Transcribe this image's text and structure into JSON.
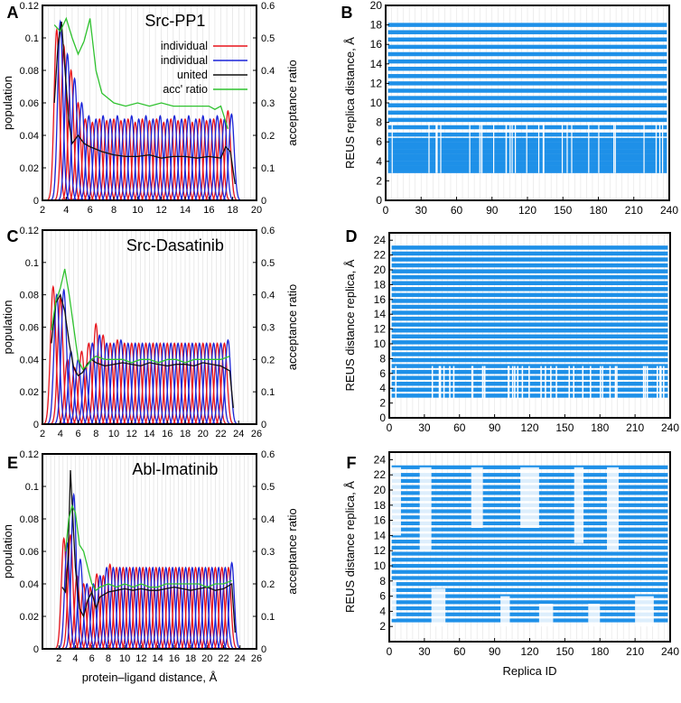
{
  "chart_data": [
    {
      "type": "line",
      "panel_label": "A",
      "title": "Src-PP1",
      "xlabel": "",
      "ylabel": "population",
      "y2label": "acceptance ratio",
      "xlim": [
        2,
        20
      ],
      "ylim": [
        0,
        0.12
      ],
      "y2lim": [
        0,
        0.6
      ],
      "xticks": [
        "2",
        "4",
        "6",
        "8",
        "10",
        "12",
        "14",
        "16",
        "18",
        "20"
      ],
      "yticks": [
        "0",
        "0.02",
        "0.04",
        "0.06",
        "0.08",
        "0.1",
        "0.12"
      ],
      "y2ticks": [
        "0",
        "0.1",
        "0.2",
        "0.3",
        "0.4",
        "0.5",
        "0.6"
      ],
      "grid": "x",
      "legend": "top-right",
      "series": [
        {
          "name": "individual",
          "color": "#e8141b",
          "kind": "gaussians",
          "centers": [
            3.2,
            3.8,
            4.4,
            5.0,
            5.6,
            6.2,
            6.8,
            7.4,
            8.0,
            8.6,
            9.2,
            9.8,
            10.4,
            11.0,
            11.6,
            12.2,
            12.8,
            13.4,
            14.0,
            14.6,
            15.2,
            15.8,
            16.4,
            17.0,
            17.6
          ],
          "sigma": 0.22,
          "peaks": [
            0.105,
            0.095,
            0.08,
            0.06,
            0.05,
            0.048,
            0.05,
            0.049,
            0.05,
            0.049,
            0.05,
            0.048,
            0.05,
            0.049,
            0.05,
            0.048,
            0.05,
            0.049,
            0.05,
            0.048,
            0.05,
            0.049,
            0.05,
            0.05,
            0.055
          ]
        },
        {
          "name": "individual",
          "color": "#1b24d8",
          "kind": "gaussians",
          "centers": [
            3.5,
            4.1,
            4.7,
            5.3,
            5.9,
            6.5,
            7.1,
            7.7,
            8.3,
            8.9,
            9.5,
            10.1,
            10.7,
            11.3,
            11.9,
            12.5,
            13.1,
            13.7,
            14.3,
            14.9,
            15.5,
            16.1,
            16.7,
            17.3,
            17.9
          ],
          "sigma": 0.22,
          "peaks": [
            0.11,
            0.09,
            0.075,
            0.06,
            0.052,
            0.05,
            0.052,
            0.05,
            0.052,
            0.05,
            0.052,
            0.05,
            0.052,
            0.05,
            0.052,
            0.05,
            0.052,
            0.05,
            0.052,
            0.05,
            0.052,
            0.05,
            0.052,
            0.05,
            0.053
          ]
        },
        {
          "name": "united",
          "color": "#111111",
          "kind": "line",
          "x": [
            3.0,
            3.3,
            3.6,
            3.9,
            4.2,
            4.5,
            5.0,
            5.5,
            6.0,
            7.0,
            8.0,
            9.0,
            10.0,
            11.0,
            12.0,
            13.0,
            14.0,
            15.0,
            16.0,
            17.0,
            17.4,
            17.8,
            18.2
          ],
          "values": [
            0.06,
            0.095,
            0.11,
            0.08,
            0.05,
            0.035,
            0.04,
            0.035,
            0.033,
            0.03,
            0.028,
            0.027,
            0.027,
            0.028,
            0.026,
            0.027,
            0.027,
            0.026,
            0.027,
            0.026,
            0.033,
            0.03,
            0.01
          ]
        },
        {
          "name": "acc' ratio",
          "color": "#2fc22f",
          "kind": "line",
          "axis": "y2",
          "x": [
            3.0,
            3.5,
            4.0,
            4.5,
            5.0,
            5.5,
            6.0,
            6.5,
            7.0,
            8.0,
            9.0,
            10.0,
            11.0,
            12.0,
            13.0,
            14.0,
            15.0,
            16.0,
            16.5,
            17.0,
            17.6
          ],
          "values": [
            0.54,
            0.52,
            0.56,
            0.5,
            0.45,
            0.49,
            0.56,
            0.4,
            0.33,
            0.3,
            0.29,
            0.3,
            0.29,
            0.3,
            0.29,
            0.29,
            0.29,
            0.29,
            0.28,
            0.29,
            0.22
          ]
        }
      ]
    },
    {
      "type": "scatter",
      "panel_label": "B",
      "xlabel": "",
      "ylabel": "REUS replica distance, Å",
      "xlim": [
        0,
        240
      ],
      "ylim": [
        0,
        20
      ],
      "xticks": [
        "0",
        "30",
        "60",
        "90",
        "120",
        "150",
        "180",
        "210",
        "240"
      ],
      "yticks": [
        "0",
        "2",
        "4",
        "6",
        "8",
        "10",
        "12",
        "14",
        "16",
        "18",
        "20"
      ],
      "color": "#1e90e8",
      "description": "horizontal rows of replica distance points",
      "rows": [
        3.0,
        3.4,
        3.8,
        4.2,
        4.6,
        5.0,
        5.4,
        5.8,
        6.2,
        6.75,
        7.5,
        8.25,
        9.0,
        9.75,
        10.5,
        11.25,
        12.0,
        12.75,
        13.5,
        14.25,
        15.0,
        15.75,
        16.5,
        17.25,
        18.0
      ]
    },
    {
      "type": "line",
      "panel_label": "C",
      "title": "Src-Dasatinib",
      "xlabel": "",
      "ylabel": "population",
      "y2label": "acceptance ratio",
      "xlim": [
        2,
        26
      ],
      "ylim": [
        0,
        0.12
      ],
      "y2lim": [
        0,
        0.6
      ],
      "xticks": [
        "2",
        "4",
        "6",
        "8",
        "10",
        "12",
        "14",
        "16",
        "18",
        "20",
        "22",
        "24",
        "26"
      ],
      "yticks": [
        "0",
        "0.02",
        "0.04",
        "0.06",
        "0.08",
        "0.1",
        "0.12"
      ],
      "y2ticks": [
        "0",
        "0.1",
        "0.2",
        "0.3",
        "0.4",
        "0.5",
        "0.6"
      ],
      "grid": "x",
      "series": [
        {
          "name": "individual",
          "color": "#e8141b",
          "kind": "gaussians",
          "centers": [
            3.2,
            4.0,
            4.8,
            5.6,
            6.4,
            7.2,
            8.0,
            8.8,
            9.6,
            10.4,
            11.2,
            12.0,
            12.8,
            13.6,
            14.4,
            15.2,
            16.0,
            16.8,
            17.6,
            18.4,
            19.2,
            20.0,
            20.8,
            21.6,
            22.4
          ],
          "sigma": 0.3,
          "peaks": [
            0.085,
            0.078,
            0.04,
            0.035,
            0.045,
            0.05,
            0.062,
            0.055,
            0.05,
            0.052,
            0.05,
            0.05,
            0.05,
            0.05,
            0.05,
            0.05,
            0.05,
            0.05,
            0.05,
            0.05,
            0.05,
            0.05,
            0.05,
            0.05,
            0.05
          ]
        },
        {
          "name": "individual",
          "color": "#1b24d8",
          "kind": "gaussians",
          "centers": [
            3.6,
            4.4,
            5.2,
            6.0,
            6.8,
            7.6,
            8.4,
            9.2,
            10.0,
            10.8,
            11.6,
            12.4,
            13.2,
            14.0,
            14.8,
            15.6,
            16.4,
            17.2,
            18.0,
            18.8,
            19.6,
            20.4,
            21.2,
            22.0,
            22.8
          ],
          "sigma": 0.3,
          "peaks": [
            0.08,
            0.083,
            0.045,
            0.04,
            0.035,
            0.05,
            0.055,
            0.05,
            0.05,
            0.052,
            0.05,
            0.05,
            0.05,
            0.05,
            0.05,
            0.05,
            0.05,
            0.05,
            0.05,
            0.05,
            0.05,
            0.05,
            0.05,
            0.05,
            0.052
          ]
        },
        {
          "name": "united",
          "color": "#111111",
          "kind": "line",
          "x": [
            3.0,
            3.5,
            4.0,
            4.5,
            5.0,
            5.5,
            6.0,
            6.5,
            7.0,
            7.5,
            8.0,
            9.0,
            10.0,
            11.0,
            12.0,
            13.0,
            14.0,
            15.0,
            16.0,
            17.0,
            18.0,
            19.0,
            20.0,
            21.0,
            22.0,
            23.0,
            23.4
          ],
          "values": [
            0.05,
            0.075,
            0.08,
            0.07,
            0.05,
            0.035,
            0.03,
            0.032,
            0.037,
            0.04,
            0.038,
            0.036,
            0.037,
            0.038,
            0.037,
            0.036,
            0.038,
            0.037,
            0.036,
            0.037,
            0.037,
            0.036,
            0.038,
            0.037,
            0.036,
            0.033,
            0.01
          ]
        },
        {
          "name": "acc' ratio",
          "color": "#2fc22f",
          "kind": "line",
          "axis": "y2",
          "x": [
            3.0,
            3.5,
            4.0,
            4.5,
            5.0,
            5.5,
            6.0,
            6.5,
            7.0,
            7.5,
            8.0,
            9.0,
            10.0,
            11.0,
            12.0,
            13.0,
            14.0,
            15.0,
            16.0,
            17.0,
            18.0,
            19.0,
            20.0,
            21.0,
            22.0,
            23.0
          ],
          "values": [
            0.29,
            0.38,
            0.42,
            0.48,
            0.4,
            0.3,
            0.2,
            0.17,
            0.18,
            0.2,
            0.21,
            0.2,
            0.2,
            0.2,
            0.19,
            0.2,
            0.2,
            0.19,
            0.2,
            0.2,
            0.19,
            0.2,
            0.2,
            0.2,
            0.2,
            0.21
          ]
        }
      ]
    },
    {
      "type": "scatter",
      "panel_label": "D",
      "xlabel": "",
      "ylabel": "REUS distance replica, Å",
      "xlim": [
        0,
        240
      ],
      "ylim": [
        0,
        25
      ],
      "xticks": [
        "0",
        "30",
        "60",
        "90",
        "120",
        "150",
        "180",
        "210",
        "240"
      ],
      "yticks": [
        "0",
        "2",
        "4",
        "6",
        "8",
        "10",
        "12",
        "14",
        "16",
        "18",
        "20",
        "22",
        "24"
      ],
      "color": "#1e90e8",
      "rows": [
        3.0,
        3.8,
        4.6,
        5.4,
        6.2,
        7.0,
        7.8,
        8.6,
        9.4,
        10.2,
        11.0,
        11.8,
        12.6,
        13.4,
        14.2,
        15.0,
        15.8,
        16.6,
        17.4,
        18.2,
        19.0,
        19.8,
        20.6,
        21.4,
        22.2,
        23.0
      ]
    },
    {
      "type": "line",
      "panel_label": "E",
      "title": "Abl-Imatinib",
      "xlabel": "protein–ligand distance, Å",
      "ylabel": "population",
      "y2label": "acceptance ratio",
      "xlim": [
        0,
        26
      ],
      "ylim": [
        0,
        0.12
      ],
      "y2lim": [
        0,
        0.6
      ],
      "xticks": [
        "2",
        "4",
        "6",
        "8",
        "10",
        "12",
        "14",
        "16",
        "18",
        "20",
        "22",
        "24",
        "26"
      ],
      "yticks": [
        "0",
        "0.02",
        "0.04",
        "0.06",
        "0.08",
        "0.1",
        "0.12"
      ],
      "y2ticks": [
        "0",
        "0.1",
        "0.2",
        "0.3",
        "0.4",
        "0.5",
        "0.6"
      ],
      "grid": "x",
      "series": [
        {
          "name": "individual",
          "color": "#e8141b",
          "kind": "gaussians",
          "centers": [
            2.6,
            3.4,
            4.2,
            5.0,
            5.8,
            6.6,
            7.4,
            8.2,
            9.0,
            9.8,
            10.6,
            11.4,
            12.2,
            13.0,
            13.8,
            14.6,
            15.4,
            16.2,
            17.0,
            17.8,
            18.6,
            19.4,
            20.2,
            21.0,
            21.8,
            22.6
          ],
          "sigma": 0.3,
          "peaks": [
            0.068,
            0.07,
            0.045,
            0.04,
            0.038,
            0.046,
            0.045,
            0.052,
            0.05,
            0.05,
            0.05,
            0.05,
            0.05,
            0.05,
            0.05,
            0.05,
            0.05,
            0.05,
            0.05,
            0.05,
            0.05,
            0.05,
            0.05,
            0.05,
            0.05,
            0.05
          ]
        },
        {
          "name": "individual",
          "color": "#1b24d8",
          "kind": "gaussians",
          "centers": [
            3.0,
            3.8,
            4.6,
            5.4,
            6.2,
            7.0,
            7.8,
            8.6,
            9.4,
            10.2,
            11.0,
            11.8,
            12.6,
            13.4,
            14.2,
            15.0,
            15.8,
            16.6,
            17.4,
            18.2,
            19.0,
            19.8,
            20.6,
            21.4,
            22.2,
            23.0
          ],
          "sigma": 0.3,
          "peaks": [
            0.065,
            0.095,
            0.055,
            0.04,
            0.04,
            0.045,
            0.05,
            0.05,
            0.05,
            0.05,
            0.05,
            0.05,
            0.05,
            0.05,
            0.05,
            0.05,
            0.05,
            0.05,
            0.05,
            0.05,
            0.05,
            0.05,
            0.05,
            0.05,
            0.05,
            0.053
          ]
        },
        {
          "name": "united",
          "color": "#111111",
          "kind": "line",
          "x": [
            2.4,
            2.8,
            3.1,
            3.4,
            3.7,
            4.0,
            4.5,
            5.0,
            5.5,
            6.0,
            6.5,
            7.0,
            8.0,
            9.0,
            10.0,
            11.0,
            12.0,
            13.0,
            14.0,
            15.0,
            16.0,
            17.0,
            18.0,
            19.0,
            20.0,
            21.0,
            22.0,
            23.0,
            23.4
          ],
          "values": [
            0.038,
            0.035,
            0.055,
            0.11,
            0.08,
            0.05,
            0.025,
            0.02,
            0.03,
            0.035,
            0.025,
            0.032,
            0.035,
            0.036,
            0.037,
            0.036,
            0.037,
            0.036,
            0.036,
            0.037,
            0.038,
            0.037,
            0.036,
            0.037,
            0.038,
            0.036,
            0.037,
            0.04,
            0.01
          ]
        },
        {
          "name": "acc' ratio",
          "color": "#2fc22f",
          "kind": "line",
          "axis": "y2",
          "x": [
            2.8,
            3.2,
            3.6,
            4.0,
            4.5,
            5.0,
            5.5,
            6.0,
            6.5,
            7.0,
            8.0,
            9.0,
            10.0,
            11.0,
            12.0,
            13.0,
            14.0,
            15.0,
            16.0,
            17.0,
            18.0,
            19.0,
            20.0,
            21.0,
            22.0,
            23.0
          ],
          "values": [
            0.3,
            0.4,
            0.44,
            0.42,
            0.32,
            0.3,
            0.25,
            0.2,
            0.18,
            0.19,
            0.2,
            0.19,
            0.2,
            0.19,
            0.2,
            0.19,
            0.19,
            0.2,
            0.2,
            0.2,
            0.2,
            0.2,
            0.19,
            0.2,
            0.2,
            0.21
          ]
        }
      ]
    },
    {
      "type": "scatter",
      "panel_label": "F",
      "xlabel": "Replica ID",
      "ylabel": "REUS distance replica, Å",
      "xlim": [
        0,
        240
      ],
      "ylim": [
        0,
        25
      ],
      "xticks": [
        "0",
        "30",
        "60",
        "90",
        "120",
        "150",
        "180",
        "210",
        "240"
      ],
      "yticks": [
        "2",
        "4",
        "6",
        "8",
        "10",
        "12",
        "14",
        "16",
        "18",
        "20",
        "22",
        "24"
      ],
      "color": "#1e90e8",
      "rows": [
        2.8,
        3.6,
        4.4,
        5.2,
        6.0,
        6.8,
        7.6,
        8.4,
        9.2,
        10.0,
        10.8,
        11.6,
        12.4,
        13.2,
        14.0,
        14.8,
        15.6,
        16.4,
        17.2,
        18.0,
        18.8,
        19.6,
        20.4,
        21.2,
        22.0,
        23.0
      ]
    }
  ]
}
